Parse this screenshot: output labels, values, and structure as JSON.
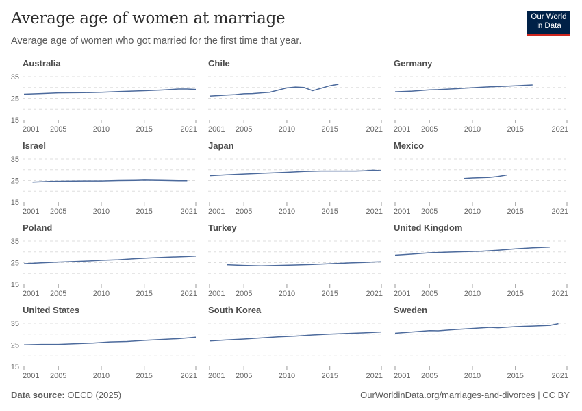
{
  "header": {
    "title": "Average age of women at marriage",
    "subtitle": "Average age of women who got married for the first time that year.",
    "logo": "Our World in Data"
  },
  "footer": {
    "source_label": "Data source:",
    "source": "OECD (2025)",
    "url": "OurWorldinData.org/marriages-and-divorces | CC BY"
  },
  "colors": {
    "line": "#4c6a9c",
    "grid": "#dddddd",
    "axis": "#666666"
  },
  "chart_data": {
    "type": "line",
    "layout": "small-multiples",
    "x_ticks": [
      2001,
      2005,
      2010,
      2015,
      2021
    ],
    "y_ticks": [
      15,
      25,
      35
    ],
    "ylim": [
      15,
      35
    ],
    "xlim": [
      2001,
      2021
    ],
    "grid": true,
    "panels": [
      {
        "name": "Australia",
        "x": [
          2001,
          2003,
          2005,
          2008,
          2010,
          2012,
          2015,
          2017,
          2019,
          2020,
          2021
        ],
        "y": [
          26.9,
          27.2,
          27.5,
          27.6,
          27.8,
          28.1,
          28.5,
          28.8,
          29.3,
          29.3,
          29.1
        ]
      },
      {
        "name": "Chile",
        "x": [
          2001,
          2003,
          2004,
          2005,
          2006,
          2008,
          2010,
          2011,
          2012,
          2013,
          2015,
          2016
        ],
        "y": [
          26.0,
          26.5,
          26.7,
          27.1,
          27.2,
          27.8,
          29.8,
          30.2,
          30.0,
          28.5,
          30.8,
          31.5
        ]
      },
      {
        "name": "Germany",
        "x": [
          2001,
          2003,
          2005,
          2006,
          2008,
          2010,
          2012,
          2014,
          2016,
          2017
        ],
        "y": [
          28.0,
          28.3,
          28.9,
          29.0,
          29.4,
          29.9,
          30.3,
          30.6,
          31.0,
          31.2
        ]
      },
      {
        "name": "Israel",
        "x": [
          2002,
          2004,
          2006,
          2008,
          2010,
          2012,
          2014,
          2015,
          2017,
          2019,
          2020
        ],
        "y": [
          24.3,
          24.6,
          24.7,
          24.8,
          24.8,
          25.0,
          25.1,
          25.2,
          25.1,
          24.9,
          24.9
        ]
      },
      {
        "name": "Japan",
        "x": [
          2001,
          2003,
          2005,
          2008,
          2010,
          2012,
          2014,
          2016,
          2018,
          2019,
          2020,
          2021
        ],
        "y": [
          27.2,
          27.6,
          28.0,
          28.5,
          28.8,
          29.2,
          29.4,
          29.4,
          29.4,
          29.5,
          29.8,
          29.6
        ]
      },
      {
        "name": "Mexico",
        "x": [
          2009,
          2010,
          2012,
          2013,
          2014
        ],
        "y": [
          25.9,
          26.1,
          26.4,
          26.8,
          27.5
        ]
      },
      {
        "name": "Poland",
        "x": [
          2001,
          2003,
          2005,
          2008,
          2010,
          2012,
          2014,
          2016,
          2018,
          2020,
          2021
        ],
        "y": [
          24.5,
          24.9,
          25.3,
          25.7,
          26.1,
          26.4,
          26.9,
          27.3,
          27.6,
          27.9,
          28.1
        ]
      },
      {
        "name": "Turkey",
        "x": [
          2003,
          2005,
          2007,
          2009,
          2011,
          2013,
          2015,
          2017,
          2019,
          2020,
          2021
        ],
        "y": [
          24.0,
          23.7,
          23.5,
          23.7,
          23.9,
          24.1,
          24.5,
          24.8,
          25.1,
          25.3,
          25.4
        ]
      },
      {
        "name": "United Kingdom",
        "x": [
          2001,
          2003,
          2005,
          2007,
          2009,
          2011,
          2013,
          2015,
          2017,
          2019
        ],
        "y": [
          28.5,
          29.0,
          29.6,
          29.9,
          30.1,
          30.3,
          30.8,
          31.4,
          31.9,
          32.2
        ]
      },
      {
        "name": "United States",
        "x": [
          2001,
          2003,
          2005,
          2007,
          2009,
          2011,
          2013,
          2015,
          2017,
          2019,
          2020,
          2021
        ],
        "y": [
          25.1,
          25.3,
          25.3,
          25.6,
          25.9,
          26.4,
          26.6,
          27.1,
          27.5,
          27.9,
          28.2,
          28.6
        ]
      },
      {
        "name": "South Korea",
        "x": [
          2001,
          2003,
          2005,
          2007,
          2009,
          2011,
          2013,
          2015,
          2017,
          2019,
          2021
        ],
        "y": [
          26.8,
          27.3,
          27.7,
          28.2,
          28.7,
          29.1,
          29.6,
          30.0,
          30.3,
          30.6,
          31.0
        ]
      },
      {
        "name": "Sweden",
        "x": [
          2001,
          2003,
          2005,
          2006,
          2008,
          2010,
          2012,
          2013,
          2015,
          2017,
          2019,
          2020
        ],
        "y": [
          30.4,
          31.0,
          31.6,
          31.5,
          32.1,
          32.6,
          33.1,
          32.9,
          33.4,
          33.7,
          34.0,
          34.8
        ]
      }
    ]
  }
}
